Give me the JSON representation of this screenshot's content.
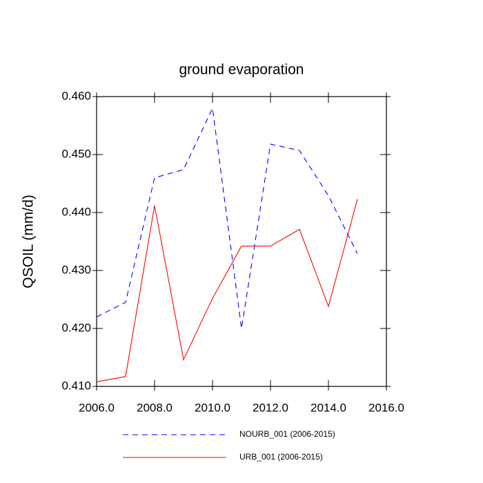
{
  "chart_data": {
    "type": "line",
    "title": "ground evaporation",
    "y_label": "QSOIL  (mm/d)",
    "x": [
      2006,
      2007,
      2008,
      2009,
      2010,
      2011,
      2012,
      2013,
      2014,
      2015
    ],
    "series": [
      {
        "name": "NOURB_001 (2006-2015)",
        "color": "#0000ff",
        "dash": "dashed",
        "values": [
          0.422,
          0.4245,
          0.446,
          0.4474,
          0.458,
          0.42,
          0.4518,
          0.4507,
          0.4429,
          0.4329
        ]
      },
      {
        "name": "URB_001 (2006-2015)",
        "color": "#ff0000",
        "dash": "solid",
        "values": [
          0.4108,
          0.4117,
          0.4412,
          0.4146,
          0.4252,
          0.4342,
          0.4342,
          0.4371,
          0.4238,
          0.4423
        ]
      }
    ],
    "xlim": [
      2006,
      2016
    ],
    "xticks": [
      {
        "value": 2006,
        "label": "2006.0"
      },
      {
        "value": 2008,
        "label": "2008.0"
      },
      {
        "value": 2010,
        "label": "2010.0"
      },
      {
        "value": 2012,
        "label": "2012.0"
      },
      {
        "value": 2014,
        "label": "2014.0"
      },
      {
        "value": 2016,
        "label": "2016.0"
      }
    ],
    "ylim": [
      0.41,
      0.46
    ],
    "yticks": [
      {
        "value": 0.41,
        "label": "0.410"
      },
      {
        "value": 0.42,
        "label": "0.420"
      },
      {
        "value": 0.43,
        "label": "0.430"
      },
      {
        "value": 0.44,
        "label": "0.440"
      },
      {
        "value": 0.45,
        "label": "0.450"
      },
      {
        "value": 0.46,
        "label": "0.460"
      }
    ]
  }
}
